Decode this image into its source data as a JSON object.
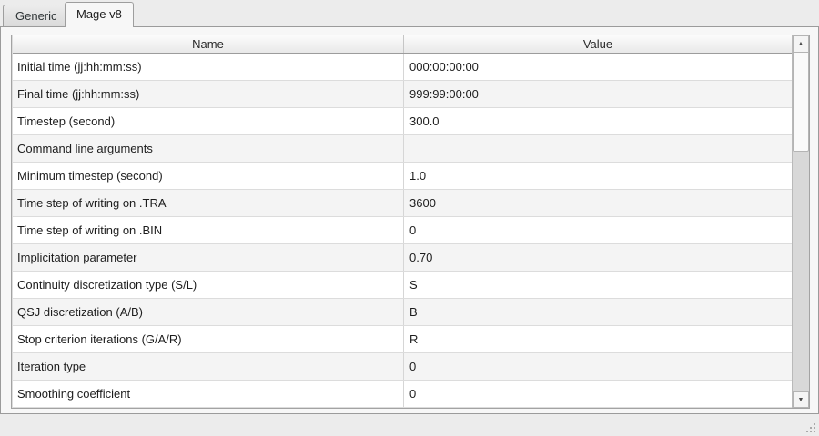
{
  "tabs": [
    {
      "label": "Generic",
      "active": false
    },
    {
      "label": "Mage v8",
      "active": true
    }
  ],
  "table": {
    "columns": [
      "Name",
      "Value"
    ],
    "rows": [
      {
        "name": "Initial time (jj:hh:mm:ss)",
        "value": "000:00:00:00"
      },
      {
        "name": "Final time (jj:hh:mm:ss)",
        "value": "999:99:00:00"
      },
      {
        "name": "Timestep (second)",
        "value": "300.0"
      },
      {
        "name": "Command line arguments",
        "value": ""
      },
      {
        "name": "Minimum timestep (second)",
        "value": "1.0"
      },
      {
        "name": "Time step of writing on .TRA",
        "value": "3600"
      },
      {
        "name": "Time step of writing on .BIN",
        "value": "0"
      },
      {
        "name": "Implicitation parameter",
        "value": "0.70"
      },
      {
        "name": "Continuity discretization type (S/L)",
        "value": "S"
      },
      {
        "name": "QSJ discretization (A/B)",
        "value": "B"
      },
      {
        "name": "Stop criterion iterations (G/A/R)",
        "value": "R"
      },
      {
        "name": "Iteration type",
        "value": "0"
      },
      {
        "name": "Smoothing coefficient",
        "value": "0"
      }
    ]
  },
  "scrollbar": {
    "up_icon": "▲",
    "down_icon": "▼"
  },
  "colors": {
    "window_bg": "#ececec",
    "panel_bg": "#f7f7f7",
    "row_alt": "#f4f4f4",
    "header_gradient_top": "#fcfcfc",
    "header_gradient_bottom": "#e9e9e9",
    "border": "#9b9b9b",
    "text": "#1d1d1d"
  }
}
